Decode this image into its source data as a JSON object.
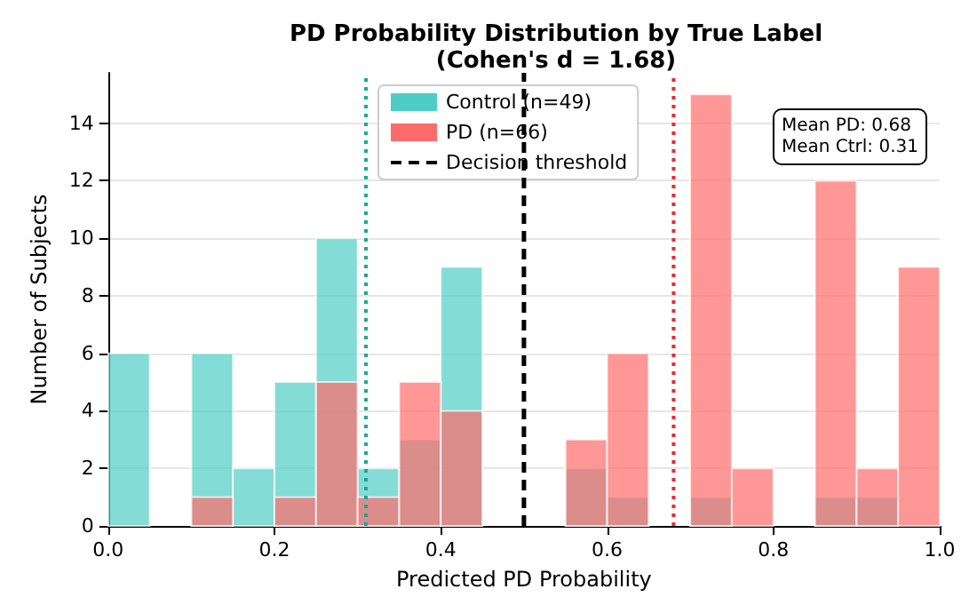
{
  "chart_data": {
    "type": "histogram",
    "title": "PD Probability Distribution by True Label",
    "subtitle": "(Cohen's d = 1.68)",
    "xlabel": "Predicted PD Probability",
    "ylabel": "Number of Subjects",
    "bins": [
      0,
      0.05,
      0.1,
      0.15,
      0.2,
      0.25,
      0.3,
      0.35,
      0.4,
      0.45,
      0.5,
      0.55,
      0.6,
      0.65,
      0.7,
      0.75,
      0.8,
      0.85,
      0.9,
      0.95,
      1.0
    ],
    "series": [
      {
        "name": "Control (n=49)",
        "color": "#4ecdc4",
        "values": [
          6,
          0,
          6,
          2,
          5,
          10,
          2,
          3,
          9,
          0,
          0,
          2,
          1,
          0,
          1,
          0,
          0,
          1,
          1,
          0
        ]
      },
      {
        "name": "PD (n=66)",
        "color": "#ff6b6b",
        "values": [
          0,
          0,
          1,
          0,
          1,
          5,
          1,
          5,
          4,
          0,
          0,
          3,
          6,
          0,
          15,
          2,
          0,
          12,
          2,
          9
        ]
      }
    ],
    "ref_lines": [
      {
        "axis": "x",
        "value": 0.31,
        "color": "#1aa79c",
        "line_style": "dotted"
      },
      {
        "axis": "x",
        "value": 0.68,
        "color": "#e8282e",
        "line_style": "dotted"
      },
      {
        "axis": "x",
        "value": 0.5,
        "label": "Decision threshold",
        "color": "#000000",
        "line_style": "dashed"
      }
    ],
    "annotations": [
      "Mean PD: 0.68\nMean Ctrl: 0.31"
    ],
    "xlim": [
      0,
      1
    ],
    "ylim": [
      0,
      15.75
    ],
    "xticks": [
      {
        "value": 0,
        "label": "0.0"
      },
      {
        "value": 0.2,
        "label": "0.2"
      },
      {
        "value": 0.4,
        "label": "0.4"
      },
      {
        "value": 0.6,
        "label": "0.6"
      },
      {
        "value": 0.8,
        "label": "0.8"
      },
      {
        "value": 1,
        "label": "1.0"
      }
    ],
    "yticks": [
      0,
      2,
      4,
      6,
      8,
      10,
      12,
      14
    ],
    "grid": "y",
    "legend": "top"
  }
}
